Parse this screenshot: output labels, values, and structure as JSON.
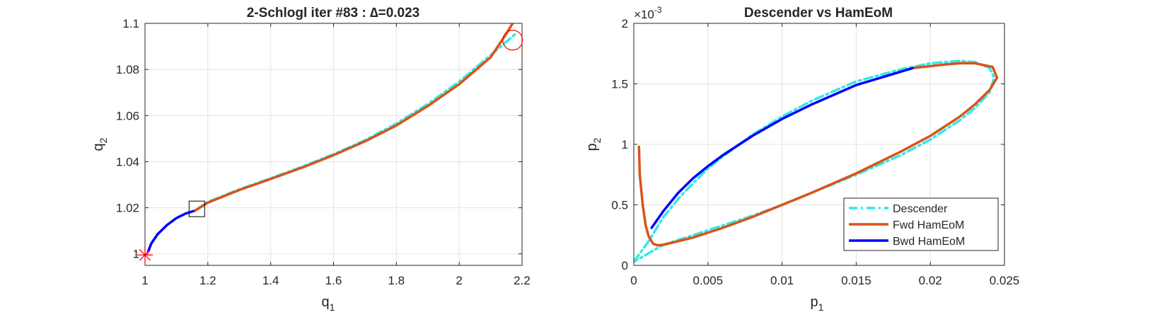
{
  "chart_data": [
    {
      "type": "line",
      "title": "2-Schlogl iter #83 : ∆=0.023",
      "xlabel": "q",
      "xlabel_sub": "1",
      "ylabel": "q",
      "ylabel_sub": "2",
      "xlim": [
        1,
        2.2
      ],
      "ylim": [
        0.995,
        1.1
      ],
      "xticks": [
        "1",
        "1.2",
        "1.4",
        "1.6",
        "1.8",
        "2",
        "2.2"
      ],
      "xtick_values": [
        1,
        1.2,
        1.4,
        1.6,
        1.8,
        2,
        2.2
      ],
      "yticks": [
        "1",
        "1.02",
        "1.04",
        "1.06",
        "1.08",
        "1.1"
      ],
      "ytick_values": [
        1,
        1.02,
        1.04,
        1.06,
        1.08,
        1.1
      ],
      "grid": true,
      "colors": {
        "descender": "#33e8e8",
        "fwd": "#d95319",
        "bwd": "#0000ff",
        "marker": "#ff0000",
        "box": "#000000"
      },
      "series": [
        {
          "style": "dashdot",
          "color": "#33e8e8",
          "x": [
            1.16,
            1.2,
            1.3,
            1.4,
            1.5,
            1.6,
            1.7,
            1.8,
            1.9,
            2.0,
            2.1,
            2.18
          ],
          "y": [
            1.0188,
            1.0225,
            1.028,
            1.0328,
            1.0378,
            1.0432,
            1.0493,
            1.0565,
            1.065,
            1.0747,
            1.0862,
            1.0955
          ]
        },
        {
          "style": "solid",
          "color": "#0000ff",
          "x": [
            1.01,
            1.02,
            1.04,
            1.07,
            1.1,
            1.13,
            1.16
          ],
          "y": [
            1.001,
            1.0045,
            1.0085,
            1.0125,
            1.0155,
            1.0175,
            1.0188
          ]
        },
        {
          "style": "solid",
          "color": "#d95319",
          "x": [
            1.16,
            1.2,
            1.3,
            1.4,
            1.5,
            1.6,
            1.7,
            1.8,
            1.9,
            2.0,
            2.1,
            2.15,
            2.17
          ],
          "y": [
            1.0188,
            1.0222,
            1.0277,
            1.0325,
            1.0374,
            1.0428,
            1.0488,
            1.0557,
            1.0641,
            1.0736,
            1.0853,
            1.0955,
            1.1
          ]
        }
      ],
      "markers": [
        {
          "type": "star",
          "x": 1.0,
          "y": 0.9995,
          "color": "#ff0000"
        },
        {
          "type": "square",
          "x": 1.165,
          "y": 1.0195,
          "color": "#000000"
        },
        {
          "type": "circle",
          "x": 2.17,
          "y": 1.0927,
          "color": "#ff0000"
        }
      ]
    },
    {
      "type": "line",
      "title": "Descender vs HamEoM",
      "xlabel": "p",
      "xlabel_sub": "1",
      "ylabel": "p",
      "ylabel_sub": "2",
      "exponent_label": "×10",
      "exponent_value": "-3",
      "xlim": [
        0,
        0.025
      ],
      "ylim": [
        0,
        2
      ],
      "xticks": [
        "0",
        "0.005",
        "0.01",
        "0.015",
        "0.02",
        "0.025"
      ],
      "xtick_values": [
        0,
        0.005,
        0.01,
        0.015,
        0.02,
        0.025
      ],
      "yticks": [
        "0",
        "0.5",
        "1",
        "1.5",
        "2"
      ],
      "ytick_values": [
        0,
        0.5,
        1,
        1.5,
        2
      ],
      "grid": true,
      "legend": {
        "location": "bottom-right",
        "entries": [
          {
            "label": "Descender",
            "style": "dashdot",
            "color": "#33e8e8"
          },
          {
            "label": "Fwd HamEoM",
            "style": "solid",
            "color": "#d95319"
          },
          {
            "label": "Bwd HamEoM",
            "style": "solid",
            "color": "#0000ff"
          }
        ]
      },
      "series": [
        {
          "name": "Descender",
          "style": "dashdot",
          "color": "#33e8e8",
          "x": [
            0,
            0.001,
            0.002,
            0.003,
            0.004,
            0.005,
            0.006,
            0.008,
            0.01,
            0.012,
            0.015,
            0.018,
            0.02,
            0.022,
            0.023,
            0.024,
            0.0243,
            0.024,
            0.023,
            0.022,
            0.02,
            0.018,
            0.015,
            0.012,
            0.01,
            0.008,
            0.006,
            0.004,
            0.002,
            0.001,
            0
          ],
          "y": [
            0.03,
            0.2,
            0.4,
            0.55,
            0.68,
            0.8,
            0.9,
            1.08,
            1.23,
            1.36,
            1.52,
            1.62,
            1.67,
            1.69,
            1.68,
            1.63,
            1.55,
            1.43,
            1.3,
            1.2,
            1.04,
            0.91,
            0.75,
            0.6,
            0.5,
            0.41,
            0.33,
            0.25,
            0.17,
            0.1,
            0.03
          ]
        },
        {
          "name": "Fwd HamEoM",
          "style": "solid",
          "color": "#d95319",
          "x": [
            0.00035,
            0.0004,
            0.0006,
            0.0008,
            0.001,
            0.0013,
            0.0016,
            0.002,
            0.003,
            0.004,
            0.006,
            0.008,
            0.01,
            0.012,
            0.015,
            0.018,
            0.02,
            0.022,
            0.023,
            0.024,
            0.0245,
            0.0242,
            0.023,
            0.022,
            0.021,
            0.0195,
            0.0188
          ],
          "y": [
            0.98,
            0.75,
            0.5,
            0.33,
            0.24,
            0.18,
            0.165,
            0.17,
            0.2,
            0.23,
            0.31,
            0.4,
            0.5,
            0.6,
            0.76,
            0.94,
            1.07,
            1.23,
            1.33,
            1.45,
            1.55,
            1.64,
            1.67,
            1.67,
            1.66,
            1.64,
            1.63
          ]
        },
        {
          "name": "Bwd HamEoM",
          "style": "solid",
          "color": "#0000ff",
          "x": [
            0.0012,
            0.002,
            0.003,
            0.004,
            0.005,
            0.006,
            0.008,
            0.01,
            0.012,
            0.015,
            0.0188
          ],
          "y": [
            0.31,
            0.45,
            0.6,
            0.72,
            0.82,
            0.91,
            1.07,
            1.21,
            1.33,
            1.49,
            1.63
          ]
        }
      ]
    }
  ]
}
